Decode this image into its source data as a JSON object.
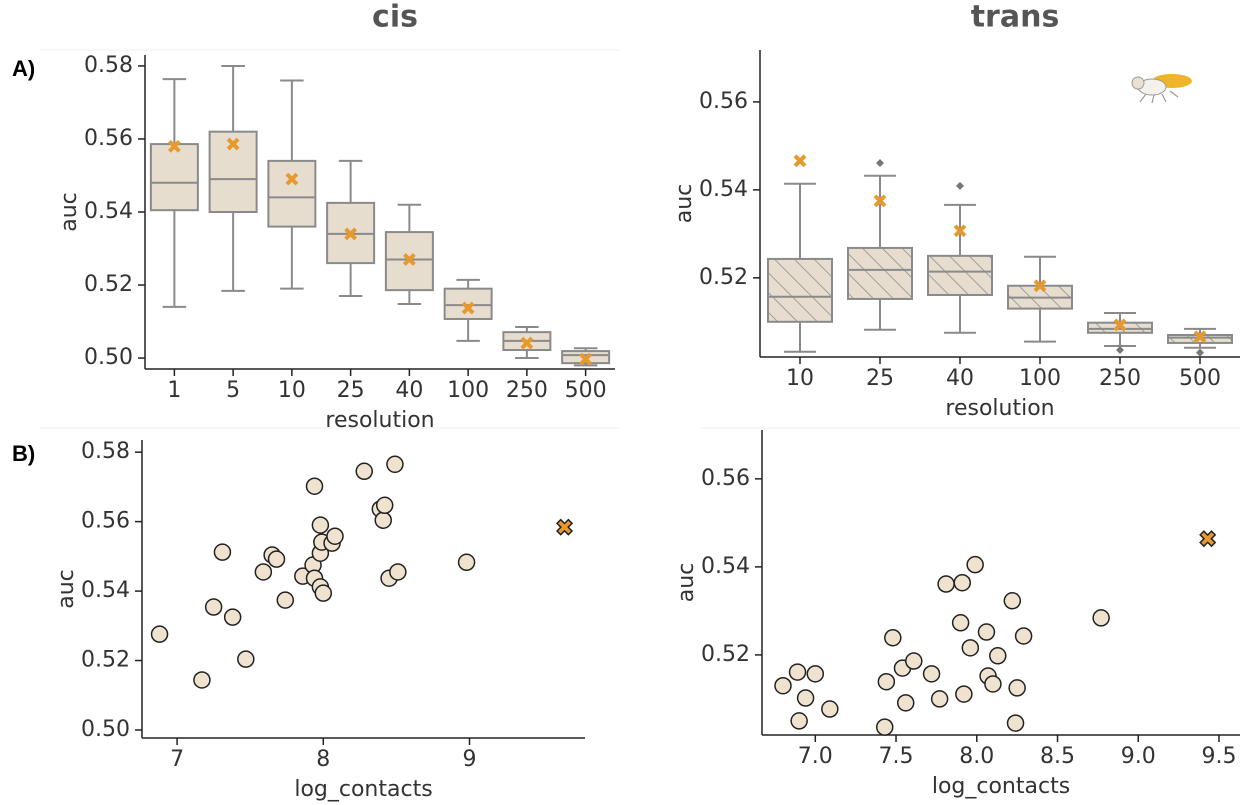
{
  "chart_data": [
    {
      "type": "box",
      "title": "cis",
      "panel_label": "A)",
      "x_label": "resolution",
      "y_label": "auc",
      "categories": [
        "1",
        "5",
        "10",
        "25",
        "40",
        "100",
        "250",
        "500"
      ],
      "boxes": [
        {
          "whislo": 0.514,
          "q1": 0.5405,
          "med": 0.548,
          "q3": 0.5586,
          "whishi": 0.5764,
          "mean": 0.558,
          "fliers": []
        },
        {
          "whislo": 0.5184,
          "q1": 0.54,
          "med": 0.549,
          "q3": 0.562,
          "whishi": 0.58,
          "mean": 0.5586,
          "fliers": []
        },
        {
          "whislo": 0.519,
          "q1": 0.536,
          "med": 0.544,
          "q3": 0.554,
          "whishi": 0.576,
          "mean": 0.549,
          "fliers": []
        },
        {
          "whislo": 0.517,
          "q1": 0.526,
          "med": 0.534,
          "q3": 0.5425,
          "whishi": 0.554,
          "mean": 0.534,
          "fliers": []
        },
        {
          "whislo": 0.5148,
          "q1": 0.5186,
          "med": 0.527,
          "q3": 0.5345,
          "whishi": 0.542,
          "mean": 0.527,
          "fliers": []
        },
        {
          "whislo": 0.5047,
          "q1": 0.5107,
          "med": 0.5145,
          "q3": 0.519,
          "whishi": 0.5214,
          "mean": 0.5137,
          "fliers": []
        },
        {
          "whislo": 0.5,
          "q1": 0.5022,
          "med": 0.5047,
          "q3": 0.5071,
          "whishi": 0.5085,
          "mean": 0.5041,
          "fliers": []
        },
        {
          "whislo": 0.498,
          "q1": 0.4986,
          "med": 0.5008,
          "q3": 0.5019,
          "whishi": 0.5027,
          "mean": 0.4997,
          "fliers": []
        }
      ],
      "box_color": "#e6ddcf",
      "hatch": false,
      "mean_color": "#e69a2e",
      "ylim": [
        0.497,
        0.583
      ],
      "yticks": [
        {
          "value": 0.5,
          "label": "0.50"
        },
        0.52,
        0.54,
        0.56,
        0.58
      ]
    },
    {
      "type": "box",
      "title": "trans",
      "x_label": "resolution",
      "y_label": "auc",
      "categories": [
        "10",
        "25",
        "40",
        "100",
        "250",
        "500"
      ],
      "boxes": [
        {
          "whislo": 0.5032,
          "q1": 0.51,
          "med": 0.5157,
          "q3": 0.5243,
          "whishi": 0.5414,
          "mean": 0.5466,
          "fliers": []
        },
        {
          "whislo": 0.5082,
          "q1": 0.5152,
          "med": 0.5218,
          "q3": 0.5268,
          "whishi": 0.5432,
          "mean": 0.5375,
          "fliers": [
            0.5461
          ]
        },
        {
          "whislo": 0.5075,
          "q1": 0.5161,
          "med": 0.5214,
          "q3": 0.525,
          "whishi": 0.5366,
          "mean": 0.5307,
          "fliers": [
            0.5409
          ]
        },
        {
          "whislo": 0.5055,
          "q1": 0.513,
          "med": 0.5155,
          "q3": 0.5182,
          "whishi": 0.5248,
          "mean": 0.5182,
          "fliers": []
        },
        {
          "whislo": 0.5045,
          "q1": 0.5075,
          "med": 0.5084,
          "q3": 0.5098,
          "whishi": 0.512,
          "mean": 0.5093,
          "fliers": [
            0.5036
          ]
        },
        {
          "whislo": 0.5041,
          "q1": 0.5052,
          "med": 0.5064,
          "q3": 0.507,
          "whishi": 0.5084,
          "mean": 0.5066,
          "fliers": [
            0.503
          ]
        }
      ],
      "box_color": "#e6ddcf",
      "hatch": true,
      "mean_color": "#e69a2e",
      "ylim": [
        0.502,
        0.5718
      ],
      "yticks": [
        0.52,
        0.54,
        0.56
      ]
    },
    {
      "type": "scatter",
      "panel_label": "B)",
      "x_label": "log_contacts",
      "y_label": "auc",
      "x": [
        6.88,
        7.17,
        7.25,
        7.31,
        7.38,
        7.47,
        7.59,
        7.65,
        7.68,
        7.74,
        7.86,
        7.93,
        7.94,
        7.94,
        7.98,
        7.98,
        7.99,
        7.98,
        8.0,
        8.06,
        8.08,
        8.28,
        8.39,
        8.41,
        8.42,
        8.45,
        8.49,
        8.51,
        8.98
      ],
      "values": [
        0.5276,
        0.5144,
        0.5354,
        0.5512,
        0.5325,
        0.5204,
        0.5455,
        0.5504,
        0.5492,
        0.5374,
        0.5443,
        0.5475,
        0.5437,
        0.5702,
        0.5509,
        0.559,
        0.5541,
        0.5412,
        0.5394,
        0.5538,
        0.5558,
        0.5745,
        0.5636,
        0.5604,
        0.5647,
        0.5437,
        0.5765,
        0.5455,
        0.5483
      ],
      "color": "#efe3cf",
      "highlight": {
        "x": 9.65,
        "value": 0.5584,
        "color": "#e69a2e"
      },
      "xlim": [
        6.76,
        9.79
      ],
      "xticks": [
        7,
        8,
        9
      ],
      "ylim": [
        0.4977,
        0.5835
      ],
      "yticks": [
        {
          "value": 0.5,
          "label": "0.50"
        },
        0.52,
        0.54,
        0.56,
        0.58
      ]
    },
    {
      "type": "scatter",
      "x_label": "log_contacts",
      "y_label": "auc",
      "x": [
        6.8,
        6.89,
        6.9,
        6.94,
        7.0,
        7.09,
        7.43,
        7.44,
        7.48,
        7.54,
        7.56,
        7.61,
        7.72,
        7.77,
        7.81,
        7.91,
        7.9,
        7.92,
        7.96,
        7.99,
        8.06,
        8.07,
        8.1,
        8.13,
        8.22,
        8.24,
        8.25,
        8.29,
        8.77
      ],
      "values": [
        0.513,
        0.5161,
        0.505,
        0.5102,
        0.5157,
        0.5077,
        0.5036,
        0.5139,
        0.5239,
        0.517,
        0.5091,
        0.5186,
        0.5157,
        0.51,
        0.5361,
        0.5364,
        0.5273,
        0.5111,
        0.5216,
        0.5405,
        0.5252,
        0.5152,
        0.5134,
        0.5198,
        0.5323,
        0.5045,
        0.5125,
        0.5243,
        0.5284
      ],
      "color": "#efe3cf",
      "highlight": {
        "x": 9.43,
        "value": 0.5464,
        "color": "#e69a2e"
      },
      "xlim": [
        6.67,
        9.63
      ],
      "xticks": [
        {
          "value": 7,
          "label": "7.0"
        },
        7.5,
        {
          "value": 8,
          "label": "8.0"
        },
        8.5,
        {
          "value": 9,
          "label": "9.0"
        },
        9.5
      ],
      "ylim": [
        0.5018,
        0.5711
      ],
      "yticks": [
        0.52,
        0.54,
        0.56
      ]
    }
  ]
}
